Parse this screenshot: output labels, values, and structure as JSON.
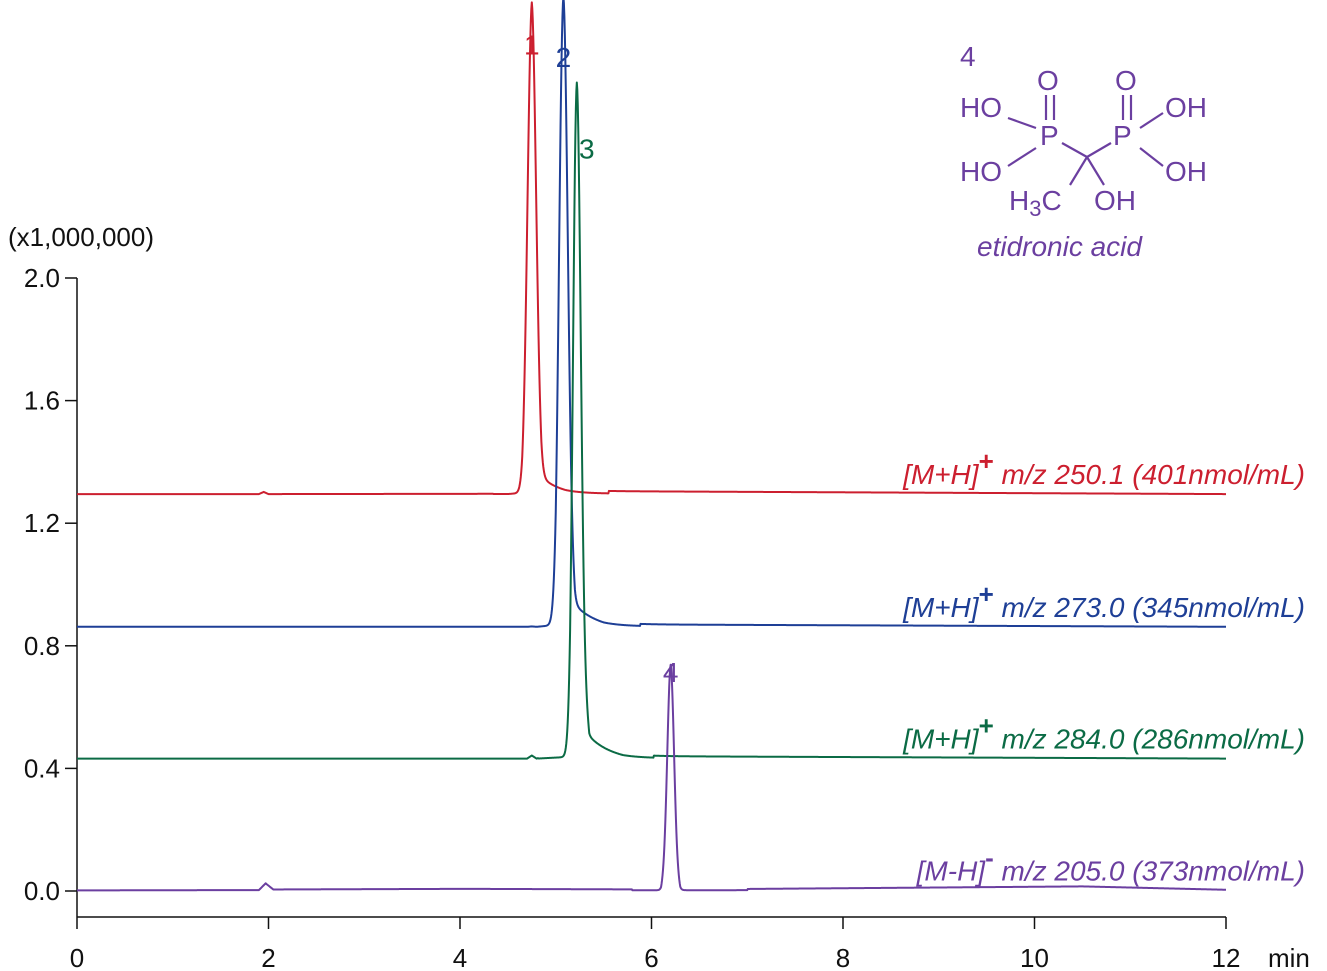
{
  "chart_data": {
    "type": "line",
    "title": "",
    "xlabel": "min",
    "ylabel": "(x1,000,000)",
    "xlim": [
      0,
      12
    ],
    "ylim": [
      -0.08,
      2.0
    ],
    "x_ticks": [
      0,
      2,
      4,
      6,
      8,
      10,
      12
    ],
    "x_tick_labels": [
      "0",
      "2",
      "4",
      "6",
      "8",
      "10",
      "12"
    ],
    "y_ticks": [
      0.0,
      0.4,
      0.8,
      1.2,
      1.6,
      2.0
    ],
    "y_tick_labels": [
      "0.0",
      "0.4",
      "0.8",
      "1.2",
      "1.6",
      "2.0"
    ],
    "grid": false,
    "series": [
      {
        "label_main": "[M+H]",
        "label_charge": "+",
        "label_rest": " m/z 250.1 (401nmol/mL)",
        "color": "#cc1f2f",
        "baseline": 1.295,
        "peak_number": "1",
        "peak": {
          "x": 4.75,
          "y": 2.69,
          "width": 0.045,
          "tail": 0.18
        },
        "points": [
          [
            0,
            1.295
          ],
          [
            1.9,
            1.295
          ],
          [
            1.95,
            1.302
          ],
          [
            2.0,
            1.295
          ],
          [
            4.5,
            1.296
          ],
          [
            4.65,
            1.32
          ],
          [
            4.72,
            2.2
          ],
          [
            4.75,
            2.69
          ],
          [
            4.78,
            2.2
          ],
          [
            4.85,
            1.35
          ],
          [
            5.1,
            1.305
          ],
          [
            12,
            1.295
          ]
        ]
      },
      {
        "label_main": "[M+H]",
        "label_charge": "+",
        "label_rest": " m/z 273.0 (345nmol/mL)",
        "color": "#1e3f96",
        "baseline": 0.862,
        "peak_number": "2",
        "peak": {
          "x": 5.08,
          "y": 2.65,
          "width": 0.045,
          "tail": 0.2
        },
        "points": [
          [
            0,
            0.862
          ],
          [
            4.7,
            0.862
          ],
          [
            4.75,
            0.87
          ],
          [
            4.8,
            0.862
          ],
          [
            5.0,
            0.9
          ],
          [
            5.05,
            2.2
          ],
          [
            5.08,
            2.65
          ],
          [
            5.11,
            2.2
          ],
          [
            5.2,
            0.95
          ],
          [
            5.5,
            0.87
          ],
          [
            12,
            0.862
          ]
        ]
      },
      {
        "label_main": "[M+H]",
        "label_charge": "+",
        "label_rest": " m/z 284.0 (286nmol/mL)",
        "color": "#0b6b45",
        "baseline": 0.432,
        "peak_number": "3",
        "peak": {
          "x": 5.22,
          "y": 2.35,
          "width": 0.04,
          "tail": 0.2
        },
        "points": [
          [
            0,
            0.432
          ],
          [
            4.7,
            0.432
          ],
          [
            4.75,
            0.442
          ],
          [
            4.8,
            0.432
          ],
          [
            5.15,
            0.47
          ],
          [
            5.2,
            2.0
          ],
          [
            5.22,
            2.35
          ],
          [
            5.25,
            2.0
          ],
          [
            5.35,
            0.52
          ],
          [
            5.7,
            0.44
          ],
          [
            12,
            0.432
          ]
        ]
      },
      {
        "label_main": "[M-H]",
        "label_charge": "-",
        "label_rest": " m/z 205.0 (373nmol/mL)",
        "color": "#6b3fa0",
        "baseline": 0.002,
        "peak_number": "4",
        "peak": {
          "x": 6.2,
          "y": 0.642,
          "width": 0.035,
          "tail": 0.03
        },
        "points": [
          [
            0,
            0.002
          ],
          [
            1.9,
            0.003
          ],
          [
            1.97,
            0.025
          ],
          [
            2.05,
            0.005
          ],
          [
            4.05,
            0.007
          ],
          [
            6.1,
            0.005
          ],
          [
            6.2,
            0.642
          ],
          [
            6.3,
            0.005
          ],
          [
            10.5,
            0.015
          ],
          [
            12,
            0.004
          ]
        ]
      }
    ]
  },
  "structure": {
    "number": "4",
    "name": "etidronic acid",
    "atoms": {
      "ho_top_left": "HO",
      "oh_top_right": "OH",
      "ho_bottom_left": "HO",
      "oh_bottom_right": "OH",
      "p_left": "P",
      "p_right": "P",
      "o_left": "O",
      "o_right": "O",
      "h3c_h": "H",
      "h3c_sub": "3",
      "h3c_c": "C",
      "oh_center": "OH"
    },
    "color": "#6b3fa0"
  }
}
